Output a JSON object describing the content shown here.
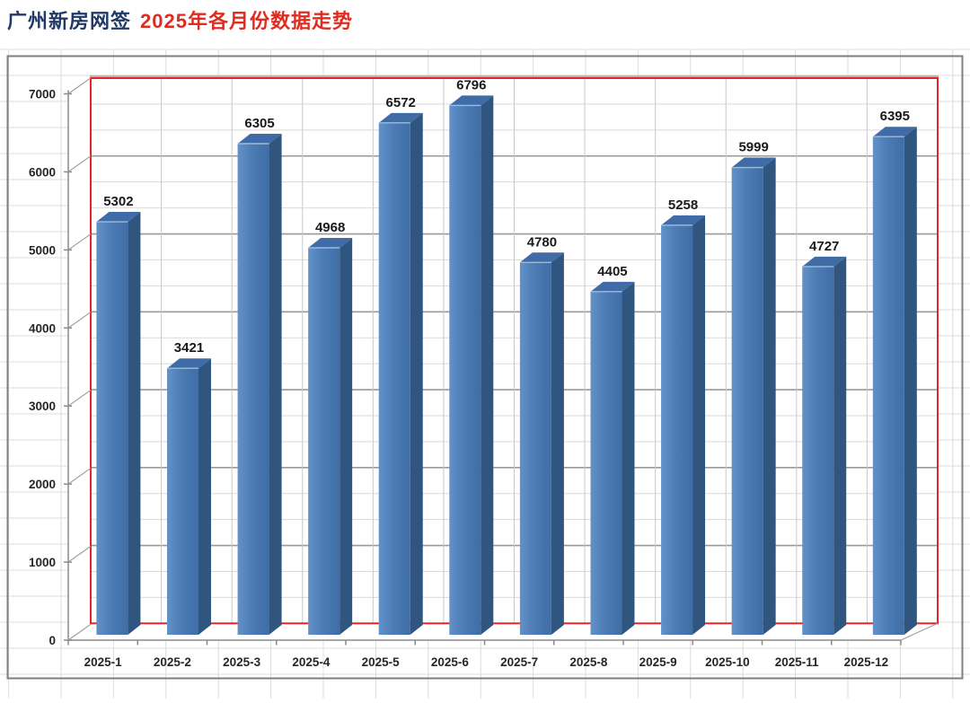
{
  "title": {
    "primary": "广州新房网签",
    "secondary": "2025年各月份数据走势"
  },
  "chart_data": {
    "type": "bar",
    "style": "3d-column",
    "title": "广州新房网签 2025年各月份数据走势",
    "categories": [
      "2025-1",
      "2025-2",
      "2025-3",
      "2025-4",
      "2025-5",
      "2025-6",
      "2025-7",
      "2025-8",
      "2025-9",
      "2025-10",
      "2025-11",
      "2025-12"
    ],
    "values": [
      5302,
      3421,
      6305,
      4968,
      6572,
      6796,
      4780,
      4405,
      5258,
      5999,
      4727,
      6395
    ],
    "data_labels": true,
    "xlabel": "",
    "ylabel": "",
    "ylim": [
      0,
      7000
    ],
    "y_major_unit": 1000,
    "y_tick_labels": [
      "0",
      "1000",
      "2000",
      "3000",
      "4000",
      "5000",
      "6000",
      "7000"
    ],
    "legend": "none",
    "grid": true
  },
  "colors": {
    "title_primary": "#1f3a66",
    "title_secondary": "#e02b20",
    "bar_front": "#4d7cb5",
    "bar_front_light": "#6292c8",
    "bar_front_dark": "#3f6da6",
    "bar_side": "#30567f",
    "bar_top": "#3f6ca6",
    "bar_bevel": "#9cbbdf",
    "plot_border_red": "#e52525",
    "major_grid": "#999999",
    "minor_grid": "#d9d9d9",
    "category_grid": "#c9c9c9",
    "top_band": "#b5b5b5",
    "axis_line": "#8a8a8a",
    "connector": "#9a9a9a",
    "sheet_grid": "#dcdcdc",
    "chart_border": "#7f7f7f",
    "data_label": "#1a1a1a",
    "axis_label": "#262626",
    "plot_fill": "#ffffff"
  }
}
